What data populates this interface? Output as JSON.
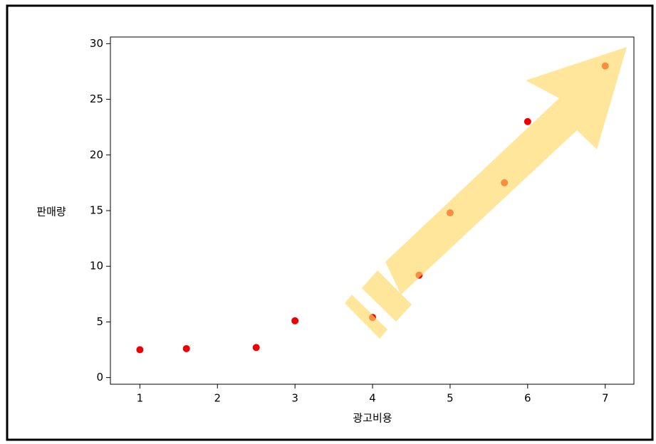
{
  "chart_data": {
    "type": "scatter",
    "x_label": "광고비용",
    "y_label": "판매량",
    "x": [
      1,
      1.6,
      2.5,
      3,
      4,
      4.6,
      5,
      5.7,
      6,
      7
    ],
    "values": [
      2.5,
      2.6,
      2.7,
      5.1,
      5.4,
      9.2,
      14.8,
      17.5,
      23,
      28
    ],
    "color": "#ee0000",
    "xlim": [
      0.62,
      7.37
    ],
    "ylim": [
      -0.6,
      30.6
    ],
    "xticks": [
      1,
      2,
      3,
      4,
      5,
      6,
      7
    ],
    "yticks": [
      0,
      5,
      10,
      15,
      20,
      25,
      30
    ]
  }
}
